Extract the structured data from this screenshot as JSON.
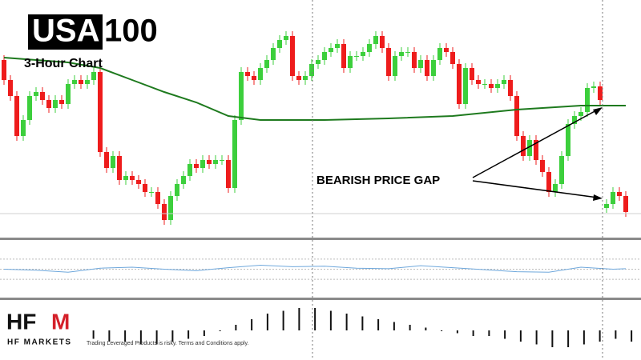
{
  "chart_data": [
    {
      "type": "candlestick",
      "title_box": "USA",
      "title_rest": "100",
      "subtitle": "3-Hour Chart",
      "annotation": "BEARISH PRICE GAP",
      "up_color": "#3ccf3c",
      "down_color": "#ee1c1c",
      "ylim": [
        0,
        300
      ],
      "open": [
        225,
        200,
        180,
        130,
        150,
        180,
        185,
        175,
        165,
        175,
        170,
        195,
        200,
        195,
        200,
        210,
        110,
        90,
        105,
        75,
        80,
        75,
        70,
        60,
        60,
        45,
        25,
        55,
        70,
        80,
        95,
        90,
        100,
        95,
        100,
        100,
        65,
        150,
        210,
        205,
        200,
        215,
        225,
        240,
        250,
        255,
        205,
        200,
        205,
        220,
        225,
        235,
        240,
        245,
        215,
        230,
        230,
        235,
        245,
        255,
        240,
        205,
        230,
        235,
        235,
        215,
        225,
        205,
        225,
        240,
        235,
        220,
        170,
        215,
        200,
        195,
        195,
        190,
        195,
        200,
        180,
        130,
        105,
        125,
        100,
        85,
        60,
        70,
        105,
        145,
        155,
        160,
        190,
        192,
        40,
        45,
        60,
        55
      ],
      "high": [
        231,
        206,
        186,
        156,
        186,
        191,
        191,
        181,
        181,
        181,
        201,
        206,
        206,
        206,
        216,
        216,
        116,
        111,
        111,
        86,
        86,
        81,
        76,
        66,
        66,
        51,
        61,
        76,
        86,
        101,
        101,
        106,
        106,
        106,
        106,
        106,
        156,
        216,
        216,
        211,
        221,
        231,
        246,
        256,
        261,
        261,
        211,
        211,
        226,
        231,
        241,
        246,
        251,
        251,
        236,
        236,
        241,
        251,
        261,
        261,
        246,
        236,
        241,
        241,
        241,
        231,
        231,
        231,
        246,
        246,
        241,
        226,
        221,
        221,
        206,
        201,
        201,
        201,
        206,
        206,
        186,
        136,
        131,
        131,
        106,
        91,
        76,
        111,
        151,
        161,
        166,
        196,
        198,
        198,
        51,
        66,
        66,
        61
      ],
      "low": [
        194,
        174,
        124,
        124,
        144,
        174,
        169,
        159,
        159,
        164,
        164,
        189,
        189,
        189,
        194,
        104,
        84,
        84,
        69,
        69,
        69,
        64,
        54,
        54,
        39,
        19,
        19,
        49,
        64,
        74,
        84,
        84,
        89,
        89,
        94,
        59,
        59,
        144,
        199,
        194,
        194,
        209,
        219,
        234,
        244,
        199,
        194,
        194,
        199,
        214,
        219,
        229,
        234,
        209,
        209,
        224,
        224,
        229,
        239,
        234,
        199,
        199,
        224,
        229,
        209,
        209,
        199,
        199,
        219,
        229,
        214,
        164,
        164,
        194,
        189,
        189,
        184,
        184,
        189,
        174,
        124,
        99,
        99,
        94,
        79,
        54,
        54,
        64,
        99,
        139,
        149,
        154,
        184,
        169,
        34,
        39,
        49,
        29
      ],
      "close": [
        200,
        180,
        130,
        150,
        180,
        185,
        175,
        165,
        175,
        170,
        195,
        200,
        195,
        200,
        210,
        110,
        90,
        105,
        75,
        80,
        75,
        70,
        60,
        60,
        45,
        25,
        55,
        70,
        80,
        95,
        90,
        100,
        95,
        100,
        100,
        65,
        150,
        210,
        205,
        200,
        215,
        225,
        240,
        250,
        255,
        205,
        200,
        205,
        220,
        225,
        235,
        240,
        245,
        215,
        230,
        230,
        235,
        245,
        255,
        240,
        205,
        230,
        235,
        235,
        215,
        225,
        205,
        225,
        240,
        235,
        220,
        170,
        215,
        200,
        195,
        195,
        190,
        195,
        200,
        180,
        130,
        105,
        125,
        100,
        85,
        60,
        70,
        105,
        145,
        155,
        160,
        190,
        192,
        175,
        45,
        60,
        55,
        35
      ],
      "moving_average": {
        "color": "#1e7a1e",
        "x": [
          0,
          10,
          15,
          20,
          25,
          30,
          35,
          40,
          50,
          60,
          70,
          80,
          90,
          97
        ],
        "values": [
          228,
          222,
          215,
          200,
          185,
          172,
          155,
          150,
          150,
          152,
          155,
          163,
          168,
          168
        ]
      }
    },
    {
      "type": "line",
      "color": "#6fa8dc",
      "ylim": [
        0,
        100
      ],
      "yticks": [
        30,
        50,
        70
      ],
      "x": [
        0,
        5,
        10,
        15,
        20,
        25,
        30,
        35,
        40,
        45,
        50,
        55,
        60,
        65,
        70,
        75,
        80,
        85,
        90,
        95,
        97
      ],
      "values": [
        50,
        48,
        44,
        52,
        54,
        50,
        47,
        53,
        58,
        55,
        56,
        52,
        51,
        57,
        53,
        49,
        45,
        44,
        54,
        50,
        51
      ]
    },
    {
      "type": "histogram",
      "color": "#111111",
      "ylim": [
        -10,
        10
      ],
      "values": [
        2,
        1,
        1,
        -1,
        -2,
        -3,
        -4,
        -4,
        -5,
        -5,
        -4,
        -3,
        -2,
        0,
        2,
        4,
        6,
        7,
        8,
        8,
        7,
        6,
        5,
        4,
        3,
        2,
        1,
        0,
        -1,
        -2,
        -2,
        -3,
        -4,
        -5,
        -6,
        -6,
        -5,
        -4,
        -3,
        -4
      ]
    }
  ],
  "brand": {
    "logo_left": "HF",
    "logo_right": "M",
    "name": "HF MARKETS",
    "disclaimer": "Trading Leveraged Products is risky. Terms and Conditions apply."
  }
}
